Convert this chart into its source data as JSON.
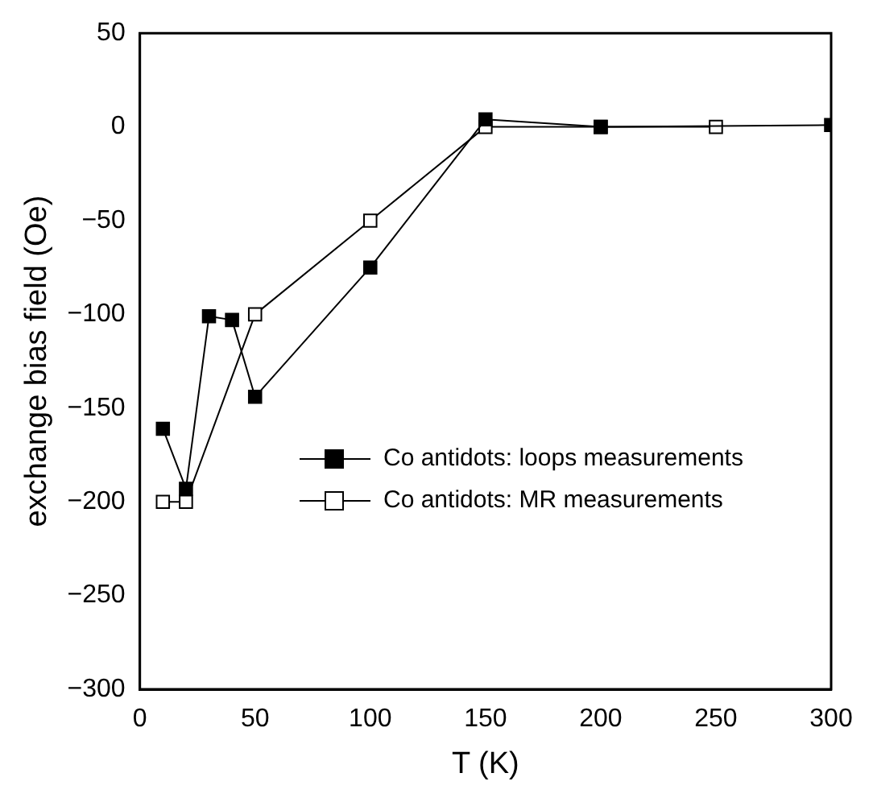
{
  "chart_data": {
    "type": "line",
    "xlabel": "T (K)",
    "ylabel": "exchange bias field (Oe)",
    "xlim": [
      0,
      300
    ],
    "xticks": [
      0,
      50,
      100,
      150,
      200,
      250,
      300
    ],
    "ylim": [
      -300,
      50
    ],
    "yticks": [
      -300,
      -250,
      -200,
      -150,
      -100,
      -50,
      0,
      50
    ],
    "grid": false,
    "legend": "bottom right",
    "marker": "square",
    "line_style": "solid",
    "series": [
      {
        "name": "Co antidots: loops measurements",
        "color": "#000000",
        "x": [
          10,
          20,
          30,
          40,
          50,
          100,
          150,
          200,
          300
        ],
        "values": [
          -161,
          -193,
          -101,
          -103,
          -144,
          -75,
          4,
          0,
          1
        ]
      },
      {
        "name": "Co antidots: MR measurements",
        "color": "#ffffff",
        "x": [
          10,
          20,
          50,
          100,
          150,
          200,
          250
        ],
        "values": [
          -200,
          -200,
          -100,
          -50,
          0,
          0,
          0
        ]
      }
    ]
  }
}
